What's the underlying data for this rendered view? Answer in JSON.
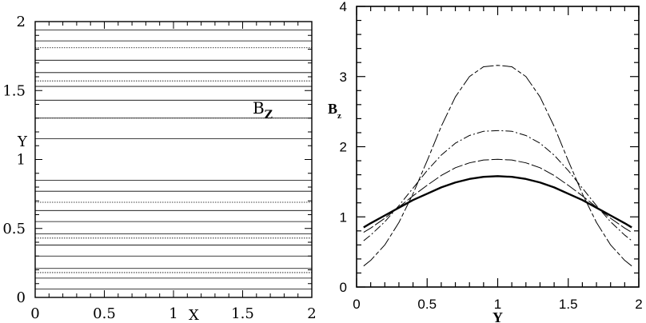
{
  "chart_data": [
    {
      "type": "line",
      "panel": "left",
      "annotation": "B",
      "annotation_sub": "Z",
      "xlabel": "X",
      "ylabel": "Y",
      "xlim": [
        0,
        2
      ],
      "ylim": [
        0,
        2
      ],
      "x_ticks": [
        "0",
        "0.5",
        "1",
        "1.5",
        "2"
      ],
      "y_ticks": [
        "0",
        "0.5",
        "1",
        "1.5",
        "2"
      ],
      "solid_contours_y": [
        0.06,
        0.14,
        0.21,
        0.3,
        0.38,
        0.46,
        0.55,
        0.63,
        0.77,
        0.85,
        1.15,
        1.3,
        1.43,
        1.53,
        1.63,
        1.72,
        1.86,
        1.94
      ],
      "dotted_contours_y": [
        0.18,
        0.43,
        0.69,
        1.3,
        1.57,
        1.81
      ]
    },
    {
      "type": "line",
      "panel": "right",
      "xlabel": "Y",
      "ylabel": "B",
      "ylabel_sub": "z",
      "xlim": [
        0,
        2
      ],
      "ylim": [
        0,
        4
      ],
      "x_ticks": [
        "0",
        "0.5",
        "1",
        "1.5",
        "2"
      ],
      "y_ticks": [
        "0",
        "1",
        "2",
        "3",
        "4"
      ],
      "series": [
        {
          "style": "solid-thick",
          "x": [
            0.05,
            0.1,
            0.2,
            0.3,
            0.4,
            0.5,
            0.6,
            0.7,
            0.8,
            0.9,
            1.0,
            1.1,
            1.2,
            1.3,
            1.4,
            1.5,
            1.6,
            1.7,
            1.8,
            1.9,
            1.95
          ],
          "values": [
            0.85,
            0.91,
            1.02,
            1.13,
            1.24,
            1.33,
            1.42,
            1.49,
            1.54,
            1.57,
            1.58,
            1.57,
            1.54,
            1.49,
            1.42,
            1.33,
            1.24,
            1.13,
            1.02,
            0.91,
            0.85
          ]
        },
        {
          "style": "dash-long",
          "x": [
            0.05,
            0.1,
            0.2,
            0.3,
            0.4,
            0.5,
            0.6,
            0.7,
            0.8,
            0.9,
            1.0,
            1.1,
            1.2,
            1.3,
            1.4,
            1.5,
            1.6,
            1.7,
            1.8,
            1.9,
            1.95
          ],
          "values": [
            0.78,
            0.84,
            0.98,
            1.14,
            1.3,
            1.45,
            1.59,
            1.7,
            1.77,
            1.81,
            1.82,
            1.81,
            1.77,
            1.7,
            1.59,
            1.45,
            1.3,
            1.14,
            0.98,
            0.84,
            0.78
          ]
        },
        {
          "style": "dash-dot",
          "x": [
            0.05,
            0.1,
            0.2,
            0.3,
            0.4,
            0.5,
            0.6,
            0.7,
            0.8,
            0.9,
            1.0,
            1.1,
            1.2,
            1.3,
            1.4,
            1.5,
            1.6,
            1.7,
            1.8,
            1.9,
            1.95
          ],
          "values": [
            0.66,
            0.74,
            0.93,
            1.16,
            1.41,
            1.66,
            1.88,
            2.05,
            2.16,
            2.22,
            2.23,
            2.22,
            2.16,
            2.05,
            1.88,
            1.66,
            1.41,
            1.16,
            0.93,
            0.74,
            0.66
          ]
        },
        {
          "style": "dash-long-short",
          "x": [
            0.05,
            0.1,
            0.2,
            0.3,
            0.4,
            0.5,
            0.6,
            0.7,
            0.8,
            0.9,
            1.0,
            1.1,
            1.2,
            1.3,
            1.4,
            1.5,
            1.6,
            1.7,
            1.8,
            1.9,
            1.95
          ],
          "values": [
            0.3,
            0.38,
            0.6,
            0.92,
            1.33,
            1.8,
            2.29,
            2.71,
            3.0,
            3.14,
            3.16,
            3.14,
            3.0,
            2.71,
            2.29,
            1.8,
            1.33,
            0.92,
            0.6,
            0.38,
            0.3
          ]
        }
      ]
    }
  ]
}
